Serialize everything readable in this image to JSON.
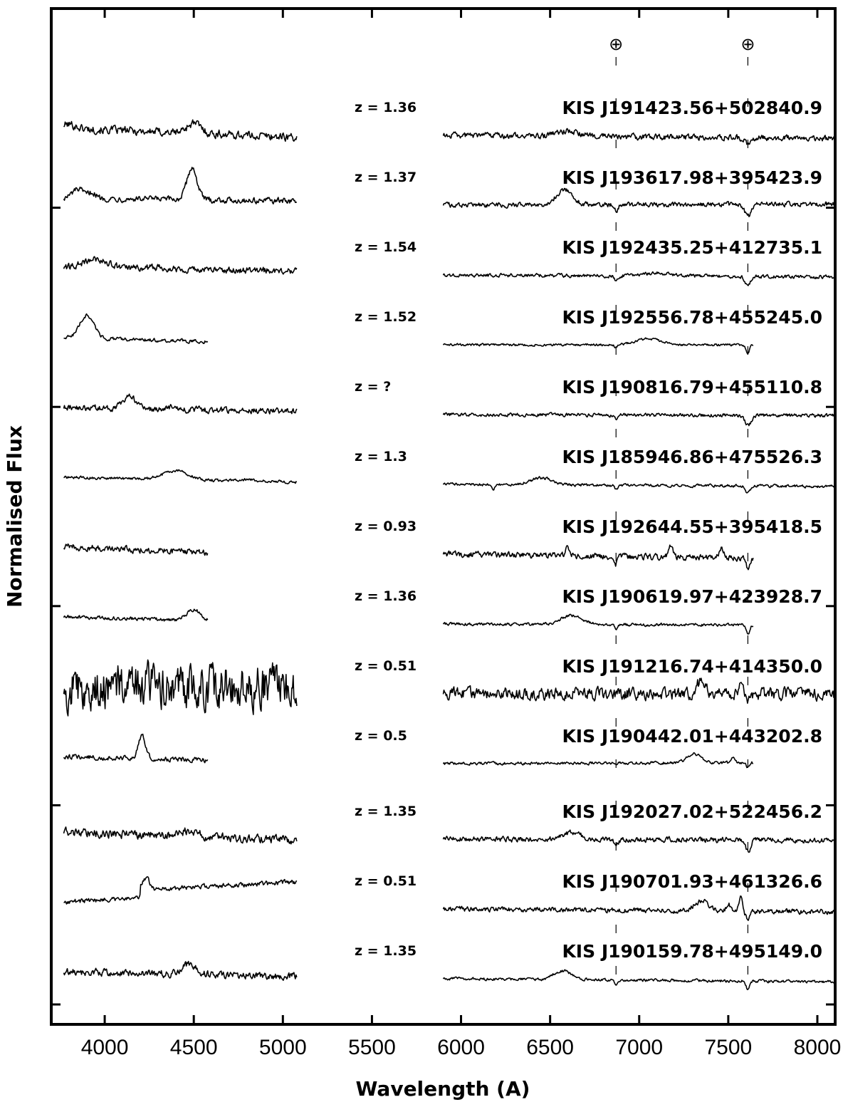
{
  "chart_data": {
    "type": "line",
    "xlabel": "Wavelength (A)",
    "ylabel": "Normalised Flux",
    "xlim": [
      3700,
      8100
    ],
    "x_ticks": [
      4000,
      4500,
      5000,
      5500,
      6000,
      6500,
      7000,
      7500,
      8000
    ],
    "telluric_marker": "⊕",
    "telluric_lines": [
      6870,
      7610
    ],
    "spectra": [
      {
        "name": "KIS J191423.56+502840.9",
        "z": "z = 1.36",
        "blue": {
          "start": 3770,
          "end": 5080,
          "features": [
            {
              "center": 4500,
              "amp": 1.0,
              "width": 40
            },
            {
              "center": 3800,
              "amp": 0.4,
              "width": 40
            }
          ],
          "noise": 0.35,
          "slope": -0.9
        },
        "red": {
          "start": 5900,
          "end": 8100,
          "features": [
            {
              "center": 6600,
              "amp": 0.5,
              "width": 60
            },
            {
              "center": 7610,
              "amp": -0.7,
              "width": 15
            }
          ],
          "noise": 0.25,
          "slope": -0.3
        }
      },
      {
        "name": "KIS J193617.98+395423.9",
        "z": "z = 1.37",
        "blue": {
          "start": 3770,
          "end": 5080,
          "features": [
            {
              "center": 4490,
              "amp": 3.2,
              "width": 28
            },
            {
              "center": 3850,
              "amp": 0.9,
              "width": 30
            },
            {
              "center": 3930,
              "amp": 0.6,
              "width": 20
            }
          ],
          "noise": 0.25,
          "slope": -0.3
        },
        "red": {
          "start": 5900,
          "end": 8100,
          "features": [
            {
              "center": 6580,
              "amp": 1.5,
              "width": 45
            },
            {
              "center": 6870,
              "amp": -0.6,
              "width": 10
            },
            {
              "center": 7610,
              "amp": -1.2,
              "width": 18
            }
          ],
          "noise": 0.2,
          "slope": 0.1
        }
      },
      {
        "name": "KIS J192435.25+412735.1",
        "z": "z = 1.54",
        "blue": {
          "start": 3770,
          "end": 5080,
          "features": [
            {
              "center": 3950,
              "amp": 0.9,
              "width": 70
            },
            {
              "center": 4300,
              "amp": 0.15,
              "width": 80
            }
          ],
          "noise": 0.28,
          "slope": -0.3
        },
        "red": {
          "start": 5900,
          "end": 8100,
          "features": [
            {
              "center": 7100,
              "amp": 0.3,
              "width": 80
            },
            {
              "center": 6870,
              "amp": -0.5,
              "width": 10
            },
            {
              "center": 7610,
              "amp": -0.8,
              "width": 15
            }
          ],
          "noise": 0.15,
          "slope": -0.2
        }
      },
      {
        "name": "KIS J192556.78+455245.0",
        "z": "z = 1.52",
        "blue": {
          "start": 3770,
          "end": 4580,
          "features": [
            {
              "center": 3900,
              "amp": 2.3,
              "width": 40
            }
          ],
          "noise": 0.15,
          "slope": -0.4
        },
        "red": {
          "start": 5900,
          "end": 7640,
          "features": [
            {
              "center": 7050,
              "amp": 0.6,
              "width": 70
            },
            {
              "center": 6870,
              "amp": -0.4,
              "width": 8
            },
            {
              "center": 7610,
              "amp": -0.8,
              "width": 10
            }
          ],
          "noise": 0.1,
          "slope": 0.0
        }
      },
      {
        "name": "KIS J190816.79+455110.8",
        "z": "z = ?",
        "blue": {
          "start": 3770,
          "end": 5080,
          "features": [
            {
              "center": 4140,
              "amp": 1.3,
              "width": 35
            },
            {
              "center": 4390,
              "amp": 0.3,
              "width": 20
            }
          ],
          "noise": 0.25,
          "slope": -0.4
        },
        "red": {
          "start": 5900,
          "end": 8100,
          "features": [
            {
              "center": 6870,
              "amp": -0.4,
              "width": 8
            },
            {
              "center": 7610,
              "amp": -1.0,
              "width": 18
            }
          ],
          "noise": 0.15,
          "slope": -0.1
        }
      },
      {
        "name": "KIS J185946.86+475526.3",
        "z": "z = 1.3",
        "blue": {
          "start": 3770,
          "end": 5080,
          "features": [
            {
              "center": 4400,
              "amp": 0.9,
              "width": 70
            },
            {
              "center": 4800,
              "amp": 0.15,
              "width": 60
            }
          ],
          "noise": 0.12,
          "slope": -0.5
        },
        "red": {
          "start": 5900,
          "end": 8100,
          "features": [
            {
              "center": 6450,
              "amp": 0.7,
              "width": 60
            },
            {
              "center": 6180,
              "amp": -0.5,
              "width": 10
            },
            {
              "center": 6870,
              "amp": -0.4,
              "width": 8
            },
            {
              "center": 7610,
              "amp": -0.7,
              "width": 12
            }
          ],
          "noise": 0.12,
          "slope": -0.2
        }
      },
      {
        "name": "KIS J192644.55+395418.5",
        "z": "z = 0.93",
        "blue": {
          "start": 3770,
          "end": 4580,
          "features": [],
          "noise": 0.28,
          "slope": -0.5
        },
        "red": {
          "start": 5900,
          "end": 7640,
          "features": [
            {
              "center": 6600,
              "amp": 0.8,
              "width": 12
            },
            {
              "center": 7180,
              "amp": 1.1,
              "width": 12
            },
            {
              "center": 7460,
              "amp": 1.0,
              "width": 12
            },
            {
              "center": 6870,
              "amp": -0.7,
              "width": 8
            },
            {
              "center": 7610,
              "amp": -1.0,
              "width": 10
            }
          ],
          "noise": 0.25,
          "slope": -0.4
        }
      },
      {
        "name": "KIS J190619.97+423928.7",
        "z": "z = 1.36",
        "blue": {
          "start": 3770,
          "end": 4580,
          "features": [
            {
              "center": 4500,
              "amp": 1.1,
              "width": 40
            }
          ],
          "noise": 0.15,
          "slope": -0.4
        },
        "red": {
          "start": 5900,
          "end": 7640,
          "features": [
            {
              "center": 6620,
              "amp": 0.9,
              "width": 60
            },
            {
              "center": 6870,
              "amp": -0.5,
              "width": 8
            },
            {
              "center": 7610,
              "amp": -0.9,
              "width": 10
            }
          ],
          "noise": 0.12,
          "slope": -0.1
        }
      },
      {
        "name": "KIS J191216.74+414350.0",
        "z": "z = 0.51",
        "blue": {
          "start": 3770,
          "end": 5080,
          "features": [],
          "noise": 1.8,
          "slope": 0.0
        },
        "red": {
          "start": 5900,
          "end": 8100,
          "features": [
            {
              "center": 7350,
              "amp": 1.3,
              "width": 25
            },
            {
              "center": 7570,
              "amp": 1.6,
              "width": 10
            },
            {
              "center": 7610,
              "amp": -0.6,
              "width": 8
            }
          ],
          "noise": 0.5,
          "slope": 0.0
        }
      },
      {
        "name": "KIS J190442.01+443202.8",
        "z": "z = 0.5",
        "blue": {
          "start": 3770,
          "end": 4580,
          "features": [
            {
              "center": 4210,
              "amp": 2.3,
              "width": 20
            }
          ],
          "noise": 0.2,
          "slope": -0.4
        },
        "red": {
          "start": 5900,
          "end": 7640,
          "features": [
            {
              "center": 7310,
              "amp": 0.9,
              "width": 40
            },
            {
              "center": 7530,
              "amp": 0.6,
              "width": 10
            },
            {
              "center": 7610,
              "amp": -0.5,
              "width": 8
            }
          ],
          "noise": 0.12,
          "slope": 0.1
        }
      },
      {
        "name": "KIS J192027.02+522456.2",
        "z": "z = 1.35",
        "blue": {
          "start": 3770,
          "end": 5080,
          "features": [
            {
              "center": 4480,
              "amp": 0.6,
              "width": 40
            }
          ],
          "noise": 0.35,
          "slope": -0.8
        },
        "red": {
          "start": 5900,
          "end": 8100,
          "features": [
            {
              "center": 6620,
              "amp": 0.7,
              "width": 50
            },
            {
              "center": 6870,
              "amp": -0.6,
              "width": 10
            },
            {
              "center": 7610,
              "amp": -1.1,
              "width": 15
            }
          ],
          "noise": 0.22,
          "slope": -0.1
        }
      },
      {
        "name": "KIS J190701.93+461326.6",
        "z": "z = 0.51",
        "blue": {
          "start": 3770,
          "end": 5080,
          "features": [
            {
              "center": 4230,
              "amp": 1.2,
              "width": 20
            }
          ],
          "noise": 0.2,
          "slope": 1.2,
          "step": {
            "at": 4200,
            "size": 0.8
          }
        },
        "red": {
          "start": 5900,
          "end": 8100,
          "features": [
            {
              "center": 7350,
              "amp": 1.0,
              "width": 40
            },
            {
              "center": 7500,
              "amp": 0.8,
              "width": 10
            },
            {
              "center": 7570,
              "amp": 1.5,
              "width": 10
            },
            {
              "center": 6870,
              "amp": -0.4,
              "width": 8
            },
            {
              "center": 7610,
              "amp": -0.9,
              "width": 12
            }
          ],
          "noise": 0.2,
          "slope": -0.3
        }
      },
      {
        "name": "KIS J190159.78+495149.0",
        "z": "z = 1.35",
        "blue": {
          "start": 3770,
          "end": 5080,
          "features": [
            {
              "center": 4470,
              "amp": 1.0,
              "width": 40
            }
          ],
          "noise": 0.3,
          "slope": -0.5
        },
        "red": {
          "start": 5900,
          "end": 8100,
          "features": [
            {
              "center": 6570,
              "amp": 0.9,
              "width": 50
            },
            {
              "center": 6870,
              "amp": -0.4,
              "width": 8
            },
            {
              "center": 7610,
              "amp": -0.8,
              "width": 10
            }
          ],
          "noise": 0.12,
          "slope": -0.3
        }
      }
    ]
  }
}
